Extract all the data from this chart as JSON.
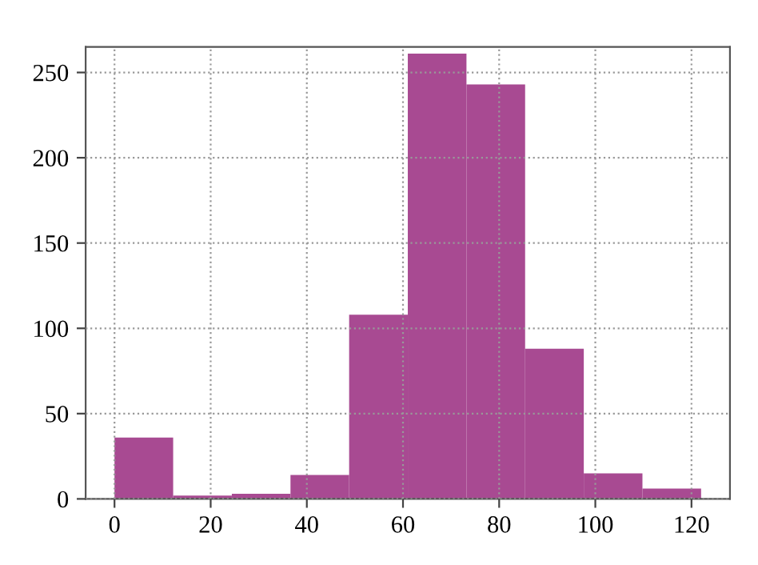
{
  "chart_data": {
    "type": "histogram",
    "bins": [
      0,
      12.2,
      24.4,
      36.6,
      48.8,
      61,
      73.2,
      85.4,
      97.6,
      109.8,
      122
    ],
    "values": [
      36,
      2,
      3,
      14,
      108,
      261,
      243,
      88,
      15,
      6
    ],
    "color": "#a84a92",
    "xlim": [
      -6,
      128
    ],
    "xticks": [
      0,
      20,
      40,
      60,
      80,
      100,
      120
    ],
    "ylim": [
      0,
      265
    ],
    "yticks": [
      0,
      50,
      100,
      150,
      200,
      250
    ],
    "grid": true,
    "line_style": "dotted"
  }
}
